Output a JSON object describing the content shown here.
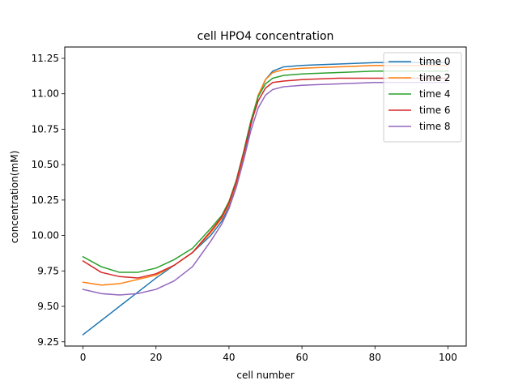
{
  "chart_data": {
    "type": "line",
    "title": "cell HPO4 concentration",
    "xlabel": "cell number",
    "ylabel": "concentration(mM)",
    "xlim": [
      -5,
      105
    ],
    "ylim": [
      9.22,
      11.33
    ],
    "xticks": [
      0,
      20,
      40,
      60,
      80,
      100
    ],
    "yticks": [
      9.25,
      9.5,
      9.75,
      10.0,
      10.25,
      10.5,
      10.75,
      11.0,
      11.25
    ],
    "ytick_labels": [
      "9.25",
      "9.50",
      "9.75",
      "10.00",
      "10.25",
      "10.50",
      "10.75",
      "11.00",
      "11.25"
    ],
    "grid": false,
    "legend_position": "top-right",
    "x": [
      0,
      5,
      10,
      15,
      20,
      25,
      30,
      35,
      38,
      40,
      42,
      44,
      46,
      48,
      50,
      52,
      55,
      60,
      70,
      80,
      90,
      100
    ],
    "series": [
      {
        "name": "time 0",
        "color": "#1f77b4",
        "values": [
          9.3,
          9.4,
          9.5,
          9.6,
          9.7,
          9.79,
          9.88,
          10.0,
          10.1,
          10.2,
          10.35,
          10.55,
          10.78,
          10.98,
          11.1,
          11.16,
          11.19,
          11.2,
          11.21,
          11.22,
          11.22,
          11.22
        ]
      },
      {
        "name": "time 2",
        "color": "#ff7f0e",
        "values": [
          9.67,
          9.65,
          9.66,
          9.69,
          9.72,
          9.79,
          9.88,
          10.02,
          10.12,
          10.22,
          10.37,
          10.57,
          10.8,
          10.99,
          11.1,
          11.15,
          11.17,
          11.18,
          11.19,
          11.2,
          11.2,
          11.2
        ]
      },
      {
        "name": "time 4",
        "color": "#2ca02c",
        "values": [
          9.85,
          9.78,
          9.74,
          9.74,
          9.77,
          9.83,
          9.91,
          10.05,
          10.14,
          10.24,
          10.39,
          10.59,
          10.81,
          10.98,
          11.07,
          11.11,
          11.13,
          11.14,
          11.15,
          11.16,
          11.16,
          11.16
        ]
      },
      {
        "name": "time 6",
        "color": "#d62728",
        "values": [
          9.82,
          9.74,
          9.71,
          9.7,
          9.73,
          9.79,
          9.88,
          10.03,
          10.13,
          10.23,
          10.38,
          10.58,
          10.79,
          10.95,
          11.04,
          11.08,
          11.09,
          11.1,
          11.11,
          11.11,
          11.11,
          11.11
        ]
      },
      {
        "name": "time 8",
        "color": "#9467bd",
        "values": [
          9.62,
          9.59,
          9.58,
          9.59,
          9.62,
          9.68,
          9.78,
          9.96,
          10.08,
          10.19,
          10.34,
          10.53,
          10.74,
          10.9,
          10.99,
          11.03,
          11.05,
          11.06,
          11.07,
          11.08,
          11.08,
          11.08
        ]
      }
    ]
  }
}
